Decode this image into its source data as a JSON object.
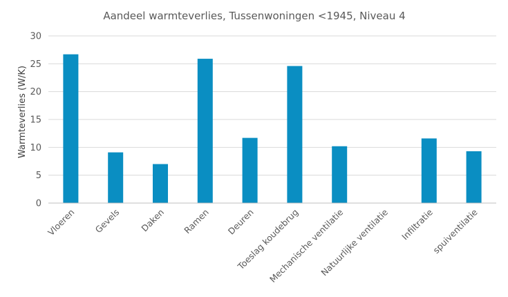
{
  "chart_data": {
    "type": "bar",
    "title": "Aandeel warmteverlies, Tussenwoningen <1945, Niveau 4",
    "xlabel": "",
    "ylabel": "Warmteverlies (W/K)",
    "ylim": [
      0,
      30
    ],
    "yticks": [
      0,
      5,
      10,
      15,
      20,
      25,
      30
    ],
    "grid": true,
    "legend": "none",
    "bar_color": "#0a8ec2",
    "categories": [
      "Vloeren",
      "Gevels",
      "Daken",
      "Ramen",
      "Deuren",
      "Toeslag koudebrug",
      "Mechanische ventilatie",
      "Natuurlijke ventilatie",
      "Infiltratie",
      "spuiventilatie"
    ],
    "values": [
      26.7,
      9.1,
      7.0,
      25.9,
      11.7,
      24.6,
      10.2,
      0,
      11.6,
      9.3
    ]
  }
}
